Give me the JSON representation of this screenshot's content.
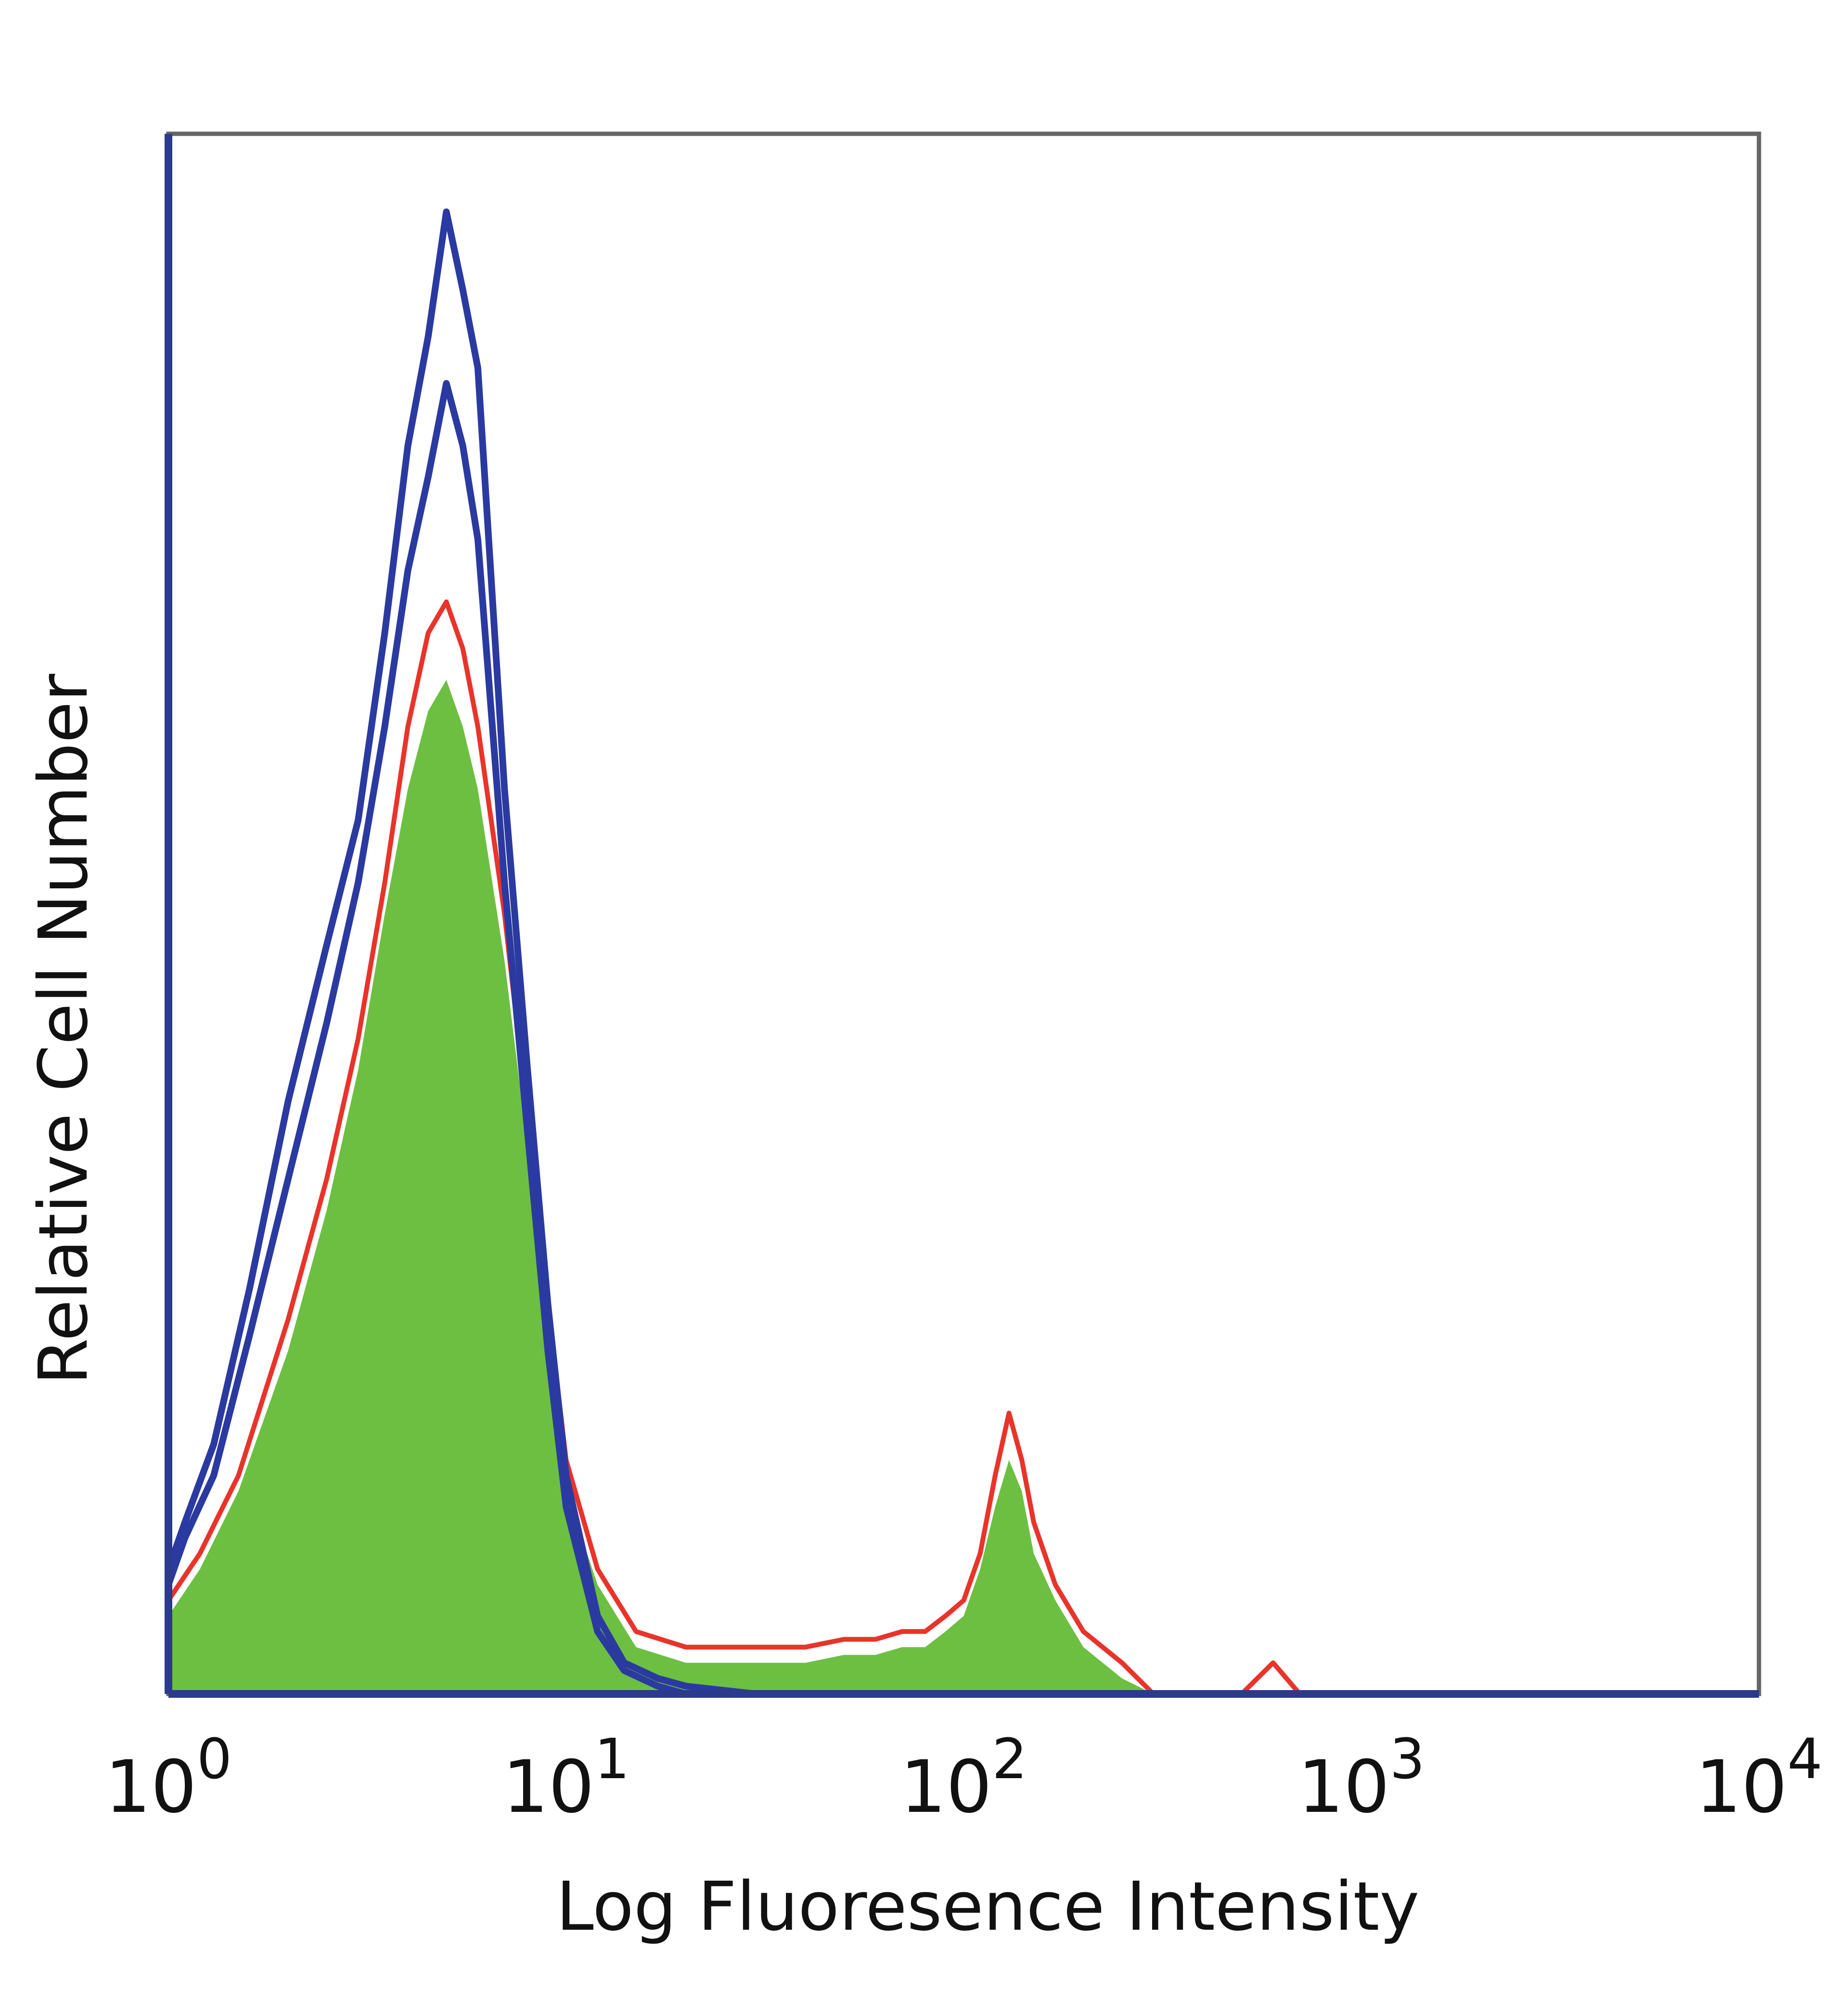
{
  "chart_data": {
    "type": "area",
    "title": "",
    "xlabel": "Log Fluoresence Intensity",
    "ylabel": "Relative Cell Number",
    "x_scale": "log",
    "xlim": [
      1,
      10000
    ],
    "ylim": [
      0,
      100
    ],
    "grid": false,
    "legend": "none",
    "x_ticks": [
      {
        "value": 1,
        "base": "10",
        "exp": "0"
      },
      {
        "value": 10,
        "base": "10",
        "exp": "1"
      },
      {
        "value": 100,
        "base": "10",
        "exp": "2"
      },
      {
        "value": 1000,
        "base": "10",
        "exp": "3"
      },
      {
        "value": 10000,
        "base": "10",
        "exp": "4"
      }
    ],
    "series": [
      {
        "style": "outline",
        "color": "#2b3aa0",
        "x": [
          1,
          1.1,
          1.3,
          1.6,
          2.0,
          2.5,
          3.0,
          3.5,
          4.0,
          4.5,
          5.0,
          5.5,
          6.0,
          7.0,
          8.0,
          9.0,
          10,
          12,
          14,
          17,
          20,
          30,
          50
        ],
        "y": [
          8,
          11,
          16,
          26,
          38,
          48,
          56,
          68,
          80,
          87,
          95,
          90,
          85,
          58,
          40,
          25,
          14,
          5,
          2,
          1,
          0.5,
          0,
          0
        ]
      },
      {
        "style": "outline",
        "color": "#2b3aa0",
        "x": [
          1,
          1.1,
          1.3,
          1.6,
          2.0,
          2.5,
          3.0,
          3.5,
          4.0,
          4.5,
          5.0,
          5.5,
          6.0,
          7.0,
          8.0,
          9.0,
          10,
          12,
          14,
          17,
          20,
          30,
          50
        ],
        "y": [
          7,
          10,
          14,
          23,
          33,
          43,
          52,
          62,
          72,
          78,
          84,
          80,
          74,
          52,
          36,
          22,
          12,
          4,
          1.5,
          0.5,
          0,
          0,
          0
        ]
      },
      {
        "style": "outline",
        "color": "#e8342a",
        "x": [
          1,
          1.2,
          1.5,
          2.0,
          2.5,
          3.0,
          3.5,
          4.0,
          4.5,
          5.0,
          5.5,
          6.0,
          7.0,
          8.0,
          9.0,
          10,
          12,
          15,
          20,
          30,
          40,
          50,
          60,
          70,
          80,
          90,
          100,
          110,
          120,
          130,
          140,
          150,
          170,
          200,
          250,
          300,
          350,
          500,
          600,
          700
        ],
        "y": [
          6,
          9,
          14,
          24,
          33,
          42,
          52,
          62,
          68,
          70,
          67,
          62,
          50,
          37,
          25,
          15,
          8,
          4,
          3,
          3,
          3,
          3.5,
          3.5,
          4,
          4,
          5,
          6,
          9,
          14,
          18,
          15,
          11,
          7,
          4,
          2,
          0,
          0,
          0,
          2,
          0
        ]
      },
      {
        "style": "filled",
        "color": "#6dbf42",
        "x": [
          1,
          1.2,
          1.5,
          2.0,
          2.5,
          3.0,
          3.5,
          4.0,
          4.5,
          5.0,
          5.5,
          6.0,
          7.0,
          8.0,
          9.0,
          10,
          12,
          15,
          20,
          30,
          40,
          50,
          60,
          70,
          80,
          90,
          100,
          110,
          120,
          130,
          140,
          150,
          170,
          200,
          250,
          300,
          350
        ],
        "y": [
          5,
          8,
          13,
          22,
          31,
          40,
          50,
          58,
          63,
          65,
          62,
          58,
          47,
          35,
          23,
          13,
          7,
          3,
          2,
          2,
          2,
          2.5,
          2.5,
          3,
          3,
          4,
          5,
          8,
          12,
          15,
          13,
          9,
          6,
          3,
          1,
          0,
          0
        ]
      }
    ]
  }
}
